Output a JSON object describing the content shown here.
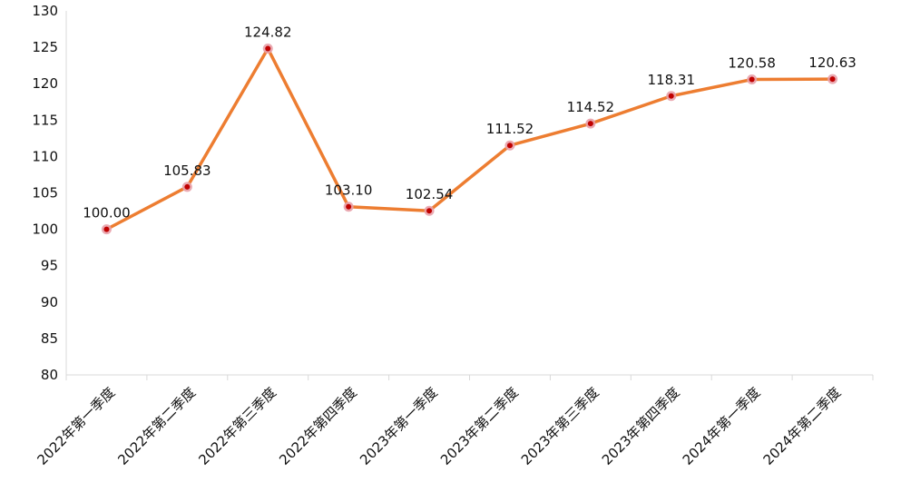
{
  "chart_data": {
    "type": "line",
    "title": "",
    "xlabel": "",
    "ylabel": "",
    "ylim": [
      80,
      130
    ],
    "yticks": [
      80,
      85,
      90,
      95,
      100,
      105,
      110,
      115,
      120,
      125,
      130
    ],
    "grid": false,
    "legend": "none",
    "categories": [
      "2022年第一季度",
      "2022年第二季度",
      "2022年第三季度",
      "2022年第四季度",
      "2023年第一季度",
      "2023年第二季度",
      "2023年第三季度",
      "2023年第四季度",
      "2024年第一季度",
      "2024年第二季度"
    ],
    "series": [
      {
        "values": [
          100.0,
          105.83,
          124.82,
          103.1,
          102.54,
          111.52,
          114.52,
          118.31,
          120.58,
          120.63
        ],
        "labels": [
          "100.00",
          "105.83",
          "124.82",
          "103.10",
          "102.54",
          "111.52",
          "114.52",
          "118.31",
          "120.58",
          "120.63"
        ],
        "color": "#ED7D31",
        "marker_fill": "#C00000",
        "marker_ring": "#E8A0A8"
      }
    ],
    "axis_color": "#D9D9D9"
  }
}
